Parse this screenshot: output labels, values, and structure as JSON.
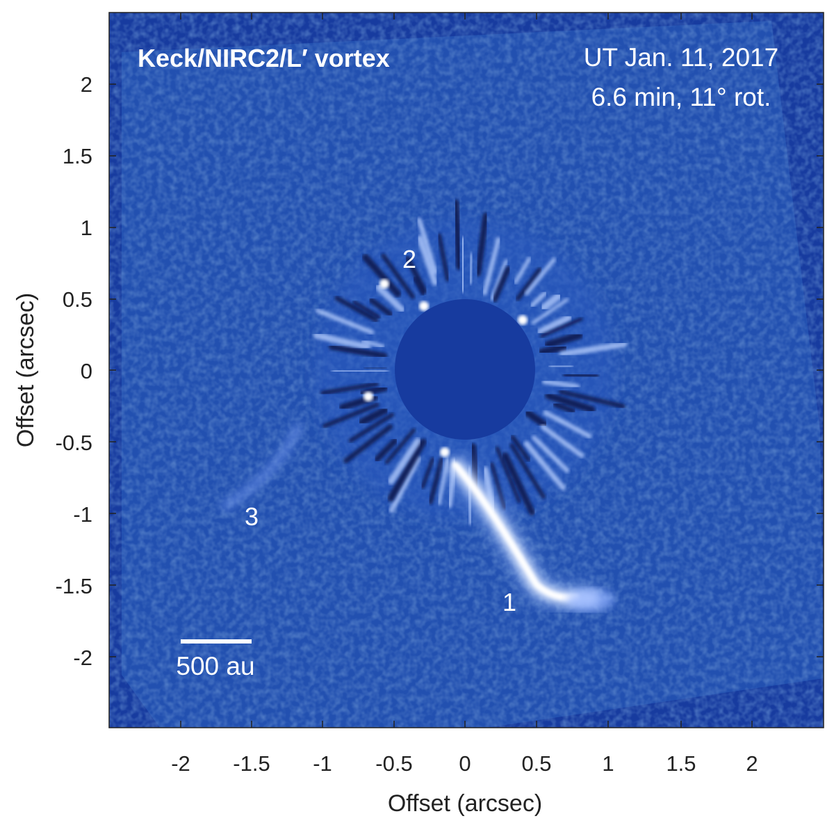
{
  "figure": {
    "title_left": "Keck/NIRC2/L′ vortex",
    "title_right_line1": "UT Jan. 11, 2017",
    "title_right_line2": "6.6 min, 11° rot.",
    "scalebar_label": "500 au",
    "source_labels": [
      "1",
      "2",
      "3"
    ],
    "xlabel": "Offset (arcsec)",
    "ylabel": "Offset (arcsec)",
    "x_ticks": [
      "-2",
      "-1.5",
      "-1",
      "-0.5",
      "0",
      "0.5",
      "1",
      "1.5",
      "2"
    ],
    "y_ticks": [
      "2",
      "1.5",
      "1",
      "0.5",
      "0",
      "-0.5",
      "-1",
      "-1.5",
      "-2"
    ],
    "colors": {
      "background": "#1e3f9a",
      "mask": "#173b9f",
      "signal": "#ffffff",
      "dark": "#08164a"
    }
  }
}
